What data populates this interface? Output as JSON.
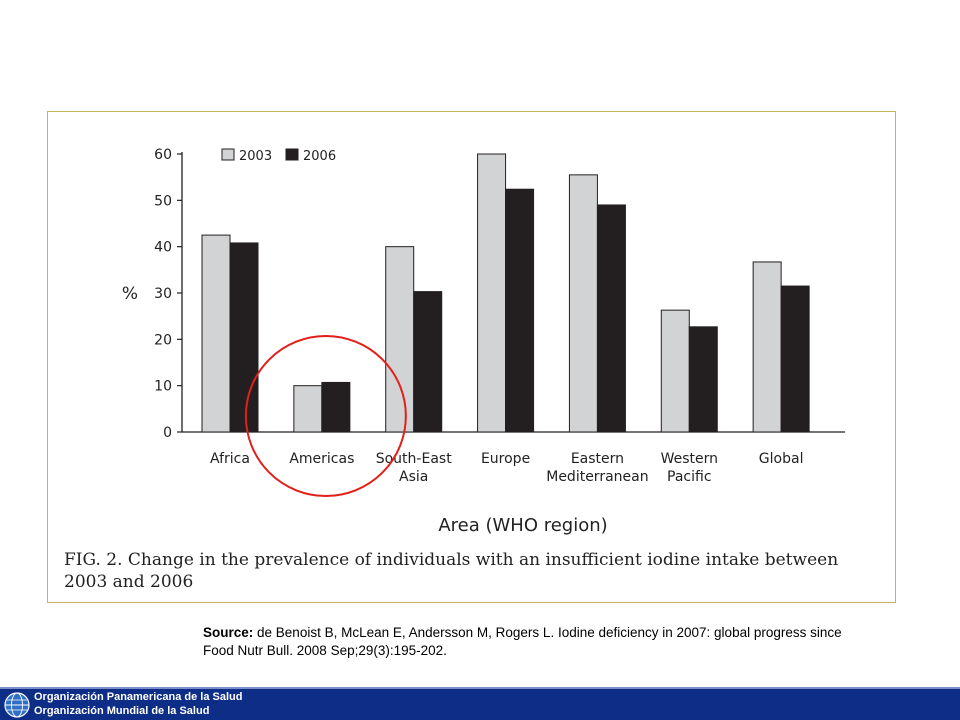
{
  "chart_data": {
    "type": "bar",
    "categories": [
      [
        "Africa"
      ],
      [
        "Americas"
      ],
      [
        "South-East",
        "Asia"
      ],
      [
        "Europe"
      ],
      [
        "Eastern",
        "Mediterranean"
      ],
      [
        "Western",
        "Pacific"
      ],
      [
        "Global"
      ]
    ],
    "series": [
      {
        "name": "2003",
        "color": "#d2d3d5",
        "values": [
          42.5,
          10,
          40,
          60,
          55.5,
          26.3,
          36.7
        ]
      },
      {
        "name": "2006",
        "color": "#231f20",
        "values": [
          40.8,
          10.7,
          30.3,
          52.4,
          49,
          22.7,
          31.5
        ]
      }
    ],
    "ylim": [
      0,
      60
    ],
    "yticks": [
      0,
      10,
      20,
      30,
      40,
      50,
      60
    ],
    "ylabel": "%",
    "xlabel": "Area (WHO region)",
    "legend_position": "top-left",
    "grid": false,
    "caption_lines": [
      "FIG. 2. Change in the prevalence of individuals with an insufficient iodine intake between",
      "2003 and 2006"
    ],
    "highlight": {
      "category": "Americas",
      "shape": "circle",
      "color": "#e0201b"
    }
  },
  "source": {
    "label": "Source:",
    "line1": "de Benoist B, McLean E, Andersson M, Rogers L. Iodine deficiency in 2007: global progress since",
    "line2": "Food Nutr Bull. 2008 Sep;29(3):195-202."
  },
  "footer": {
    "line1": "Organización Panamericana de la Salud",
    "line2": "Organización Mundial de la Salud",
    "background": "#0d2d86",
    "logo_icon": "globe-logo-icon"
  }
}
